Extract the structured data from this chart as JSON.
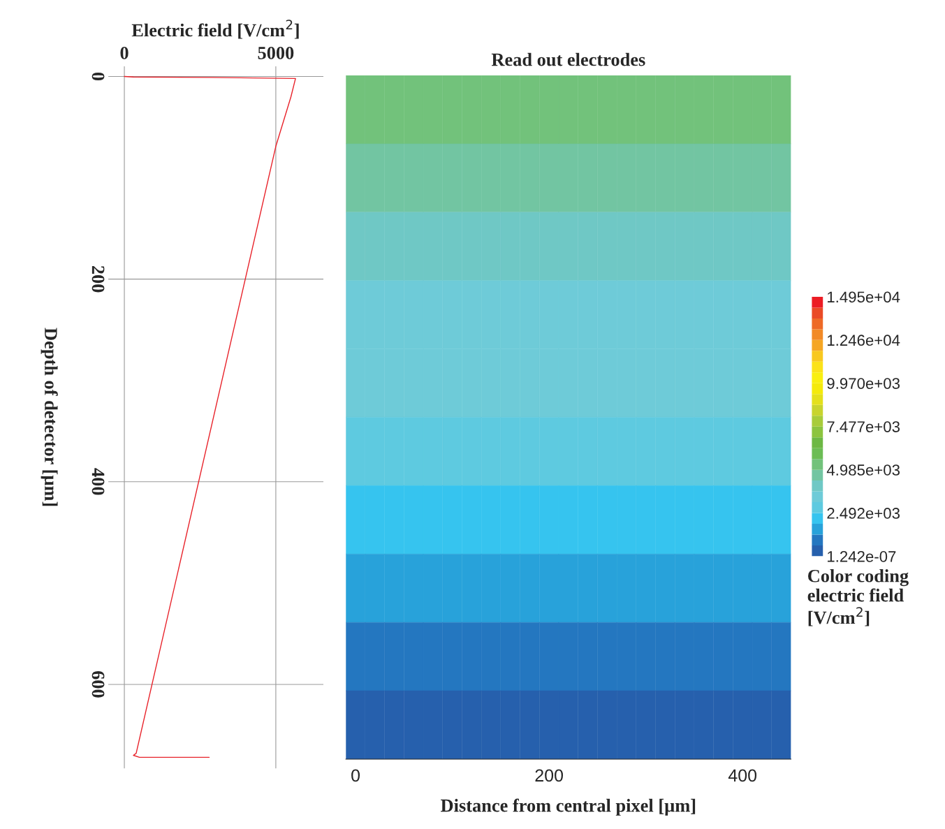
{
  "chart_data": [
    {
      "type": "line",
      "xlabel": "Electric field [V/cm$^{2}$]",
      "ylabel": "Depth of detector [µm]",
      "xlim": [
        -530,
        6570
      ],
      "xticks": [
        0,
        5000
      ],
      "ylim": [
        683,
        -10
      ],
      "yticks": [
        0,
        200,
        400,
        600
      ],
      "grid": true,
      "legend": false,
      "marker": "none",
      "line_style": "solid",
      "series": [
        {
          "color": "#e8222a",
          "x": [
            0,
            300,
            2900,
            5650,
            5500,
            5000,
            390,
            300,
            500,
            2800
          ],
          "values": [
            0,
            0.5,
            1,
            2,
            20,
            69,
            668,
            670,
            672,
            672
          ]
        }
      ]
    },
    {
      "type": "heatmap",
      "title": "Read out electrodes",
      "xlabel": "Distance from central pixel [µm]",
      "clabel": "Color coding electric field [V/cm$^{2}$]",
      "categories": [
        "0",
        null,
        null,
        null,
        null,
        null,
        null,
        null,
        null,
        null,
        "200",
        null,
        null,
        null,
        null,
        null,
        null,
        null,
        null,
        null,
        "400",
        null,
        null
      ],
      "y_categories": [
        null,
        null,
        null,
        null,
        null,
        null,
        null,
        null,
        null,
        null
      ],
      "cells": [
        [
          5300,
          5300,
          5300,
          5300,
          5300,
          5300,
          5300,
          5300,
          5300,
          5300,
          5300,
          5300,
          5300,
          5300,
          5300,
          5300,
          5300,
          5300,
          5300,
          5300,
          5300,
          5300,
          5300
        ],
        [
          4700,
          4700,
          4700,
          4700,
          4700,
          4700,
          4700,
          4700,
          4700,
          4700,
          4700,
          4700,
          4700,
          4700,
          4700,
          4700,
          4700,
          4700,
          4700,
          4700,
          4700,
          4700,
          4700
        ],
        [
          4050,
          4050,
          4050,
          4050,
          4050,
          4050,
          4050,
          4050,
          4050,
          4050,
          4050,
          4050,
          4050,
          4050,
          4050,
          4050,
          4050,
          4050,
          4050,
          4050,
          4050,
          4050,
          4050
        ],
        [
          3450,
          3450,
          3450,
          3450,
          3450,
          3450,
          3450,
          3450,
          3450,
          3450,
          3450,
          3450,
          3450,
          3450,
          3450,
          3450,
          3450,
          3450,
          3450,
          3450,
          3450,
          3450,
          3450
        ],
        [
          3450,
          3450,
          3450,
          3450,
          3450,
          3450,
          3450,
          3450,
          3450,
          3450,
          3450,
          3450,
          3450,
          3450,
          3450,
          3450,
          3450,
          3450,
          3450,
          3450,
          3450,
          3450,
          3450
        ],
        [
          2800,
          2800,
          2800,
          2800,
          2800,
          2800,
          2800,
          2800,
          2800,
          2800,
          2800,
          2800,
          2800,
          2800,
          2800,
          2800,
          2800,
          2800,
          2800,
          2800,
          2800,
          2800,
          2800
        ],
        [
          2200,
          2200,
          2200,
          2200,
          2200,
          2200,
          2200,
          2200,
          2200,
          2200,
          2200,
          2200,
          2200,
          2200,
          2200,
          2200,
          2200,
          2200,
          2200,
          2200,
          2200,
          2200,
          2200
        ],
        [
          1550,
          1550,
          1550,
          1550,
          1550,
          1550,
          1550,
          1550,
          1550,
          1550,
          1550,
          1550,
          1550,
          1550,
          1550,
          1550,
          1550,
          1550,
          1550,
          1550,
          1550,
          1550,
          1550
        ],
        [
          950,
          950,
          950,
          950,
          950,
          950,
          950,
          950,
          950,
          950,
          950,
          950,
          950,
          950,
          950,
          950,
          950,
          950,
          950,
          950,
          950,
          950,
          950
        ],
        [
          300,
          300,
          300,
          300,
          300,
          300,
          300,
          300,
          300,
          300,
          300,
          300,
          300,
          300,
          300,
          300,
          300,
          300,
          300,
          300,
          300,
          300,
          300
        ]
      ],
      "clim": [
        1.242e-07,
        14950
      ],
      "cticks": [
        {
          "value": 1.242e-07,
          "label": "1.242e-07"
        },
        {
          "value": 2492,
          "label": "2.492e+03"
        },
        {
          "value": 4985,
          "label": "4.985e+03"
        },
        {
          "value": 7477,
          "label": "7.477e+03"
        },
        {
          "value": 9970,
          "label": "9.970e+03"
        },
        {
          "value": 12460,
          "label": "1.246e+04"
        },
        {
          "value": 14950,
          "label": "1.495e+04"
        }
      ],
      "colors": [
        "#2660ad",
        "#2477c0",
        "#28a2da",
        "#36c4ef",
        "#5ecae0",
        "#6ecbd8",
        "#6fc8c5",
        "#72c5a2",
        "#72c27b",
        "#6cbd55",
        "#6db844",
        "#8cc43f",
        "#a8cc3a",
        "#c8d42e",
        "#e4e01c",
        "#f4ea0c",
        "#f9ef10",
        "#fbe21a",
        "#f8c81f",
        "#f5a623",
        "#f28a26",
        "#ee6a27",
        "#ea4a26",
        "#ec1c24"
      ]
    }
  ]
}
